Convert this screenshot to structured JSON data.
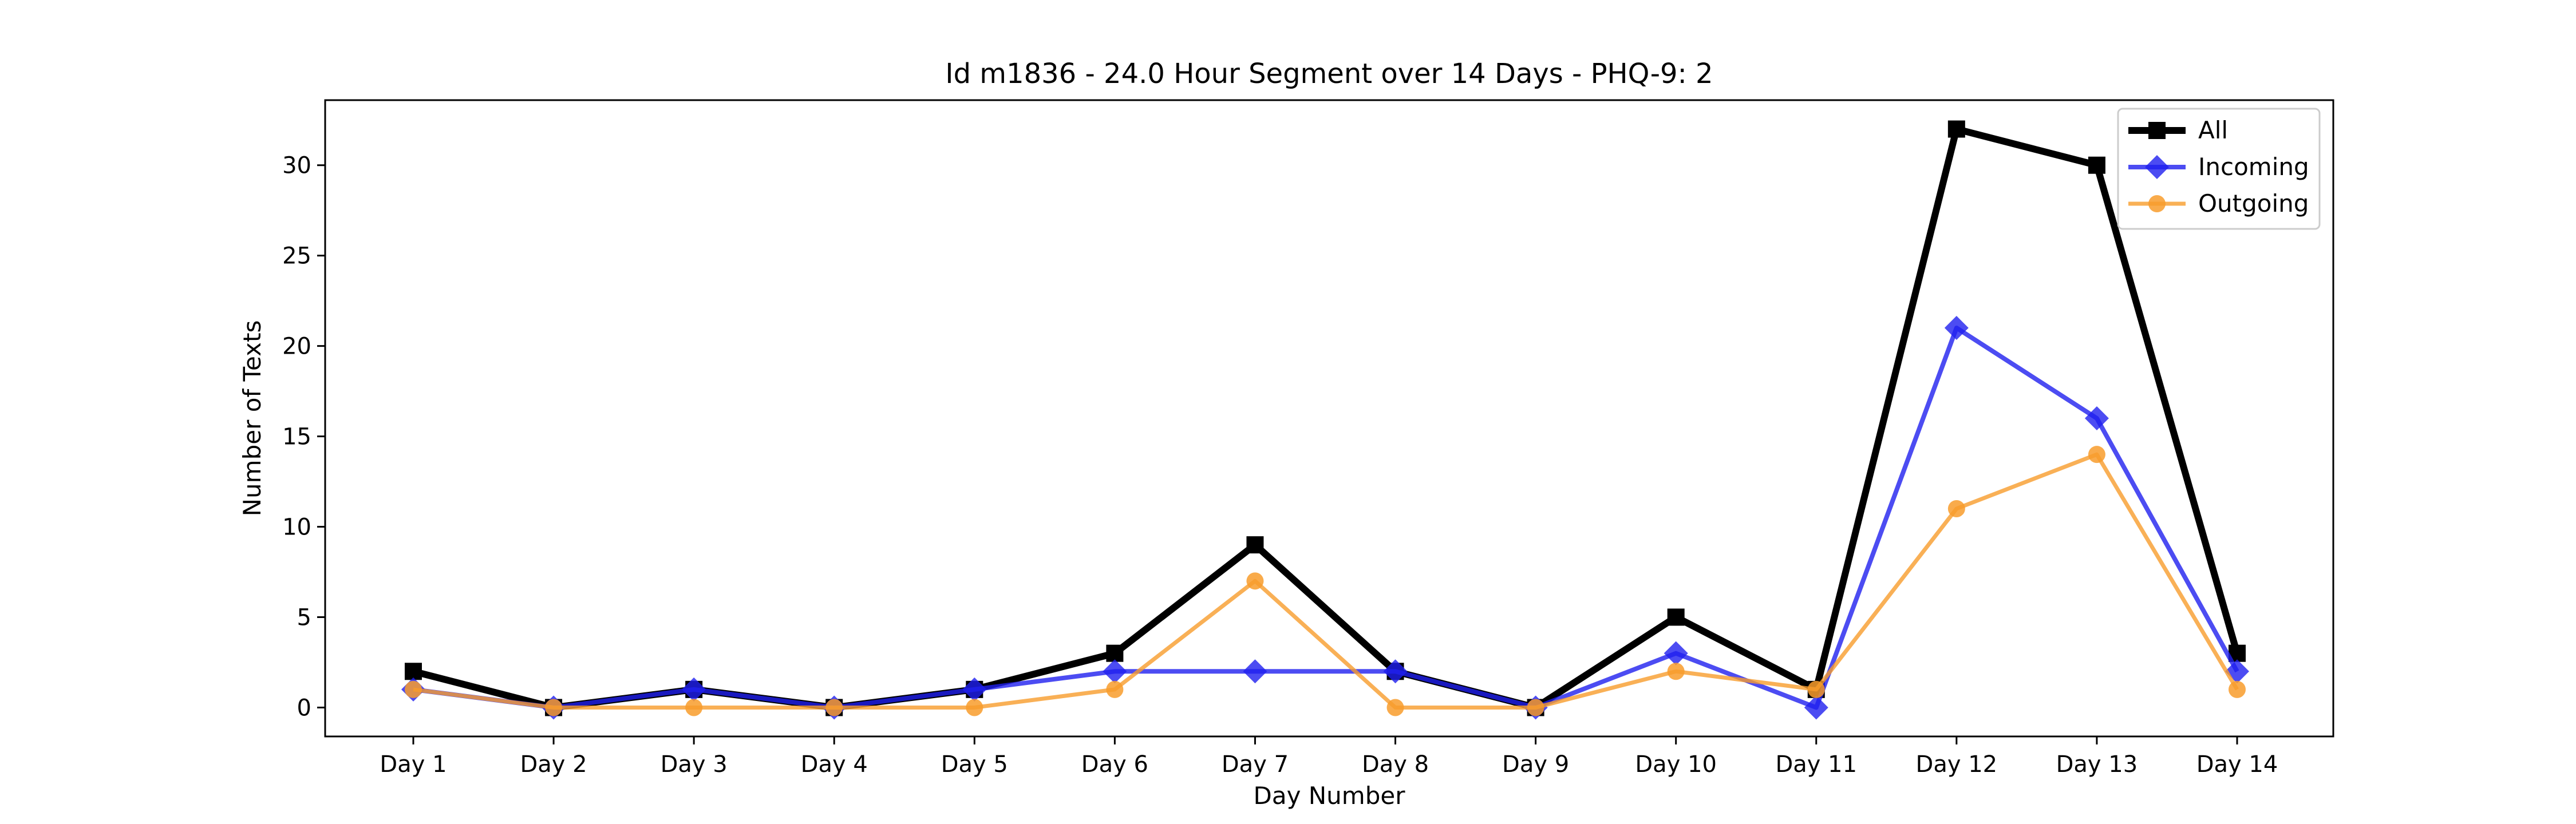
{
  "chart_data": {
    "type": "line",
    "title": "Id m1836 - 24.0 Hour Segment over 14 Days - PHQ-9: 2",
    "xlabel": "Day Number",
    "ylabel": "Number of Texts",
    "categories": [
      "Day 1",
      "Day 2",
      "Day 3",
      "Day 4",
      "Day 5",
      "Day 6",
      "Day 7",
      "Day 8",
      "Day 9",
      "Day 10",
      "Day 11",
      "Day 12",
      "Day 13",
      "Day 14"
    ],
    "ylim": [
      -1.6,
      33.6
    ],
    "yticks": [
      0,
      5,
      10,
      15,
      20,
      25,
      30
    ],
    "grid": false,
    "legend_position": "top-right",
    "series": [
      {
        "name": "All",
        "color": "#000000",
        "marker": "square",
        "values": [
          2,
          0,
          1,
          0,
          1,
          3,
          9,
          2,
          0,
          5,
          1,
          32,
          30,
          3
        ]
      },
      {
        "name": "Incoming",
        "color": "#1f1fef",
        "marker": "diamond",
        "values": [
          1,
          0,
          1,
          0,
          1,
          2,
          2,
          2,
          0,
          3,
          0,
          21,
          16,
          2
        ]
      },
      {
        "name": "Outgoing",
        "color": "#f89c2c",
        "marker": "circle",
        "values": [
          1,
          0,
          0,
          0,
          0,
          1,
          7,
          0,
          0,
          2,
          1,
          11,
          14,
          1
        ]
      }
    ]
  }
}
